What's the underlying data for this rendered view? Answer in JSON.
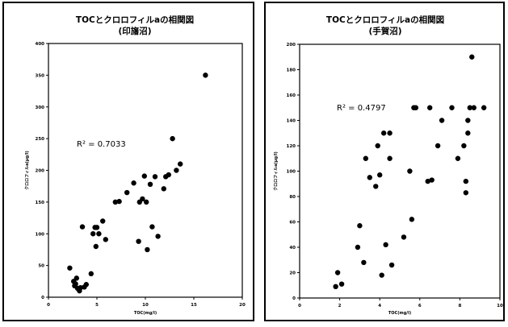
{
  "chart_data": [
    {
      "type": "scatter",
      "title": "TOCとクロロフィルaの相関図",
      "subtitle": "(印旛沼)",
      "xlabel": "TOC(mg/l)",
      "ylabel": "クロロフィルa(μg/l)",
      "xlim": [
        0,
        20
      ],
      "ylim": [
        0,
        400
      ],
      "xticks": [
        "0",
        "5",
        "10",
        "15",
        "20"
      ],
      "yticks": [
        "0",
        "50",
        "100",
        "150",
        "200",
        "250",
        "300",
        "350",
        "400"
      ],
      "annotation": "R² = 0.7033",
      "grid": false,
      "color": "#000000",
      "x": [
        2.2,
        2.6,
        2.7,
        2.8,
        2.9,
        3.0,
        3.2,
        3.3,
        3.5,
        3.7,
        3.9,
        4.4,
        4.6,
        4.8,
        4.9,
        5.0,
        5.2,
        5.6,
        5.9,
        6.9,
        7.3,
        8.1,
        8.8,
        9.3,
        9.4,
        9.7,
        9.9,
        10.1,
        10.2,
        10.5,
        10.7,
        11.0,
        11.3,
        11.9,
        12.1,
        12.4,
        12.8,
        13.2,
        13.6,
        16.2
      ],
      "y": [
        46,
        25,
        18,
        21,
        30,
        14,
        10,
        15,
        111,
        16,
        20,
        37,
        100,
        110,
        80,
        110,
        100,
        120,
        91,
        150,
        151,
        165,
        180,
        88,
        150,
        155,
        191,
        150,
        75,
        178,
        111,
        190,
        96,
        171,
        190,
        193,
        250,
        200,
        210,
        350
      ]
    },
    {
      "type": "scatter",
      "title": "TOCとクロロフィルaの相関図",
      "subtitle": "(手賀沼)",
      "xlabel": "TOC(mg/l)",
      "ylabel": "クロロフィルa(μg/l)",
      "xlim": [
        0,
        10
      ],
      "ylim": [
        0,
        200
      ],
      "xticks": [
        "0",
        "2",
        "4",
        "6",
        "8",
        "10"
      ],
      "yticks": [
        "0",
        "20",
        "40",
        "60",
        "80",
        "100",
        "120",
        "140",
        "160",
        "180",
        "200"
      ],
      "annotation": "R² = 0.4797",
      "grid": false,
      "color": "#000000",
      "x": [
        1.8,
        1.9,
        2.1,
        2.9,
        3.0,
        3.2,
        3.3,
        3.5,
        3.8,
        3.9,
        4.0,
        4.1,
        4.2,
        4.3,
        4.5,
        4.5,
        4.6,
        5.2,
        5.5,
        5.6,
        5.7,
        5.8,
        6.4,
        6.5,
        6.6,
        6.9,
        7.1,
        7.6,
        7.9,
        8.2,
        8.3,
        8.3,
        8.4,
        8.4,
        8.5,
        8.6,
        8.7,
        9.2
      ],
      "y": [
        9,
        20,
        11,
        40,
        57,
        28,
        110,
        95,
        88,
        120,
        97,
        18,
        130,
        42,
        110,
        130,
        26,
        48,
        100,
        62,
        150,
        150,
        92,
        150,
        93,
        120,
        140,
        150,
        110,
        120,
        83,
        92,
        130,
        140,
        150,
        190,
        150,
        150
      ]
    }
  ]
}
